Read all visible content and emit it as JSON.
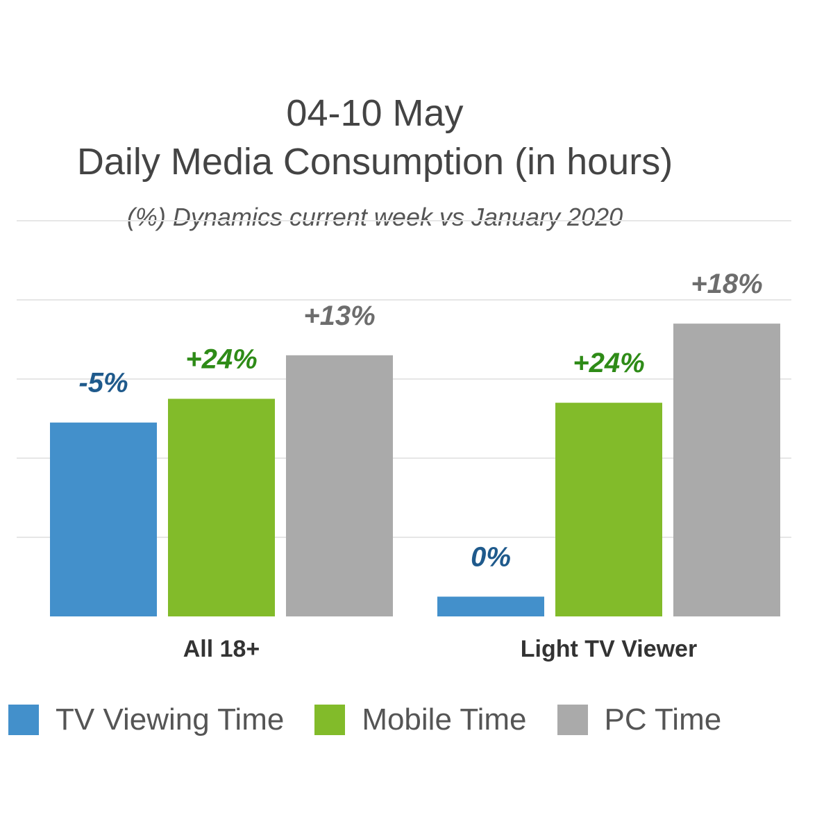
{
  "chart_data": {
    "type": "bar",
    "title_line1": "04-10 May",
    "title_line2": "Daily Media Consumption (in hours)",
    "subtitle": "(%) Dynamics current week  vs January 2020",
    "categories": [
      "All 18+",
      "Light TV Viewer"
    ],
    "series": [
      {
        "name": "TV Viewing Time",
        "color": "#4390cb",
        "label_color": "#1f5a8c",
        "values": [
          2.45,
          0.25
        ],
        "labels": [
          "-5%",
          "0%"
        ]
      },
      {
        "name": "Mobile Time",
        "color": "#82bb2a",
        "label_color": "#2e8b17",
        "values": [
          2.75,
          2.7
        ],
        "labels": [
          "+24%",
          "+24%"
        ]
      },
      {
        "name": "PC Time",
        "color": "#aaaaaa",
        "label_color": "#6d6d6d",
        "values": [
          3.3,
          3.7
        ],
        "labels": [
          "+13%",
          "+18%"
        ]
      }
    ],
    "ylim": [
      0,
      5
    ],
    "grid": true,
    "legend": "bottom",
    "xlabel": "",
    "ylabel": ""
  }
}
